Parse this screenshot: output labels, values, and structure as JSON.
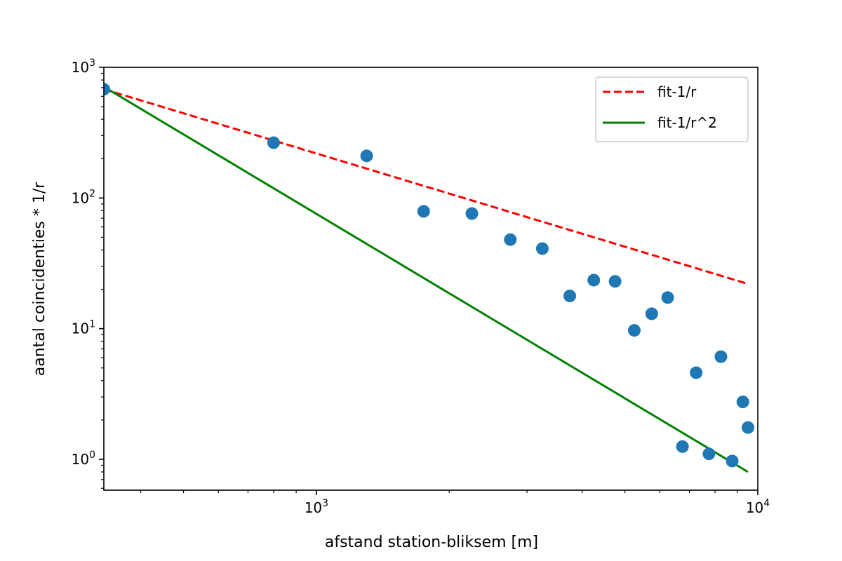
{
  "chart_data": {
    "type": "scatter",
    "title": "",
    "xlabel": "afstand station-bliksem [m]",
    "ylabel": "aantal coincidenties * 1/r",
    "xscale": "log",
    "yscale": "log",
    "xlim": [
      330,
      10000
    ],
    "ylim": [
      0.58,
      1000
    ],
    "x_ticks": [
      {
        "base": "10",
        "exp": "3",
        "value": 1000
      },
      {
        "base": "10",
        "exp": "4",
        "value": 10000
      }
    ],
    "y_ticks": [
      {
        "base": "10",
        "exp": "0",
        "value": 1
      },
      {
        "base": "10",
        "exp": "1",
        "value": 10
      },
      {
        "base": "10",
        "exp": "2",
        "value": 100
      },
      {
        "base": "10",
        "exp": "3",
        "value": 1000
      }
    ],
    "grid": false,
    "legend_position": "top-right",
    "points": {
      "color": "#1f77b4",
      "x": [
        330,
        800,
        1300,
        1750,
        2250,
        2750,
        3250,
        3750,
        4250,
        4750,
        5250,
        5750,
        6250,
        6750,
        7250,
        7750,
        8250,
        8750,
        9250,
        9500
      ],
      "y": [
        680,
        265,
        210,
        79,
        76,
        48,
        41,
        17.8,
        23.5,
        23,
        9.7,
        13,
        17.3,
        1.25,
        4.6,
        1.1,
        6.1,
        0.97,
        2.75,
        1.75
      ]
    },
    "series": [
      {
        "name": "fit-1/r",
        "color": "#ff0000",
        "style": "dashed",
        "x": [
          330,
          9500
        ],
        "y": [
          680,
          22
        ]
      },
      {
        "name": "fit-1/r^2",
        "color": "#008000",
        "style": "solid",
        "x": [
          330,
          9500
        ],
        "y": [
          710,
          0.8
        ]
      }
    ]
  }
}
